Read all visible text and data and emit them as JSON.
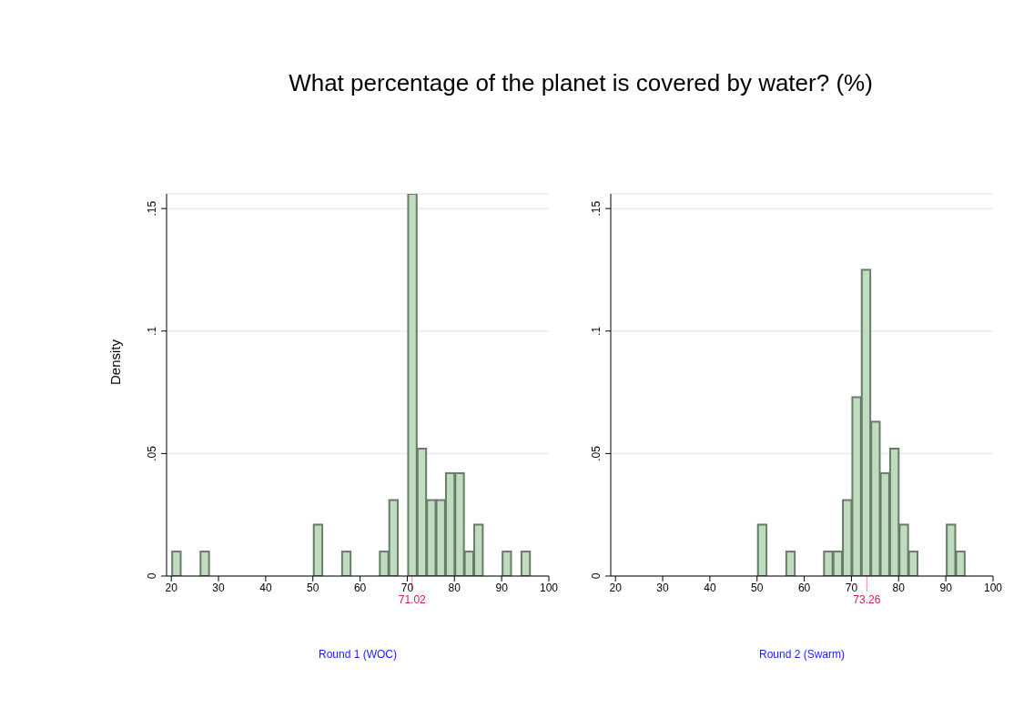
{
  "chart_data": [
    {
      "type": "histogram",
      "title": "What percentage of the planet is covered by water? (%)",
      "xlabel": "Round 1 (WOC)",
      "ylabel": "Density",
      "bins": [
        20,
        22,
        24,
        26,
        28,
        30,
        32,
        34,
        36,
        38,
        40,
        42,
        44,
        46,
        48,
        50,
        52,
        54,
        56,
        58,
        60,
        62,
        64,
        66,
        68,
        70,
        72,
        74,
        76,
        78,
        80,
        82,
        84,
        86,
        88,
        90,
        92,
        94,
        96
      ],
      "values": [
        0.01,
        0,
        0,
        0.01,
        0,
        0,
        0,
        0,
        0,
        0,
        0,
        0,
        0,
        0,
        0,
        0.021,
        0,
        0,
        0.01,
        0,
        0,
        0,
        0.01,
        0.031,
        0,
        0.156,
        0.052,
        0.031,
        0.031,
        0.042,
        0.042,
        0.01,
        0.021,
        0,
        0,
        0.01,
        0,
        0.01
      ],
      "color": "#c0dcc0",
      "xlim": [
        19,
        100
      ],
      "xticks": [
        20,
        30,
        40,
        50,
        60,
        70,
        80,
        90,
        100
      ],
      "ylim": [
        0,
        0.156
      ],
      "yticks": [
        0,
        {
          "value": 0.05,
          "label": ".05"
        },
        {
          "value": 0.1,
          "label": ".1"
        },
        {
          "value": 0.15,
          "label": ".15"
        }
      ],
      "grid": "y",
      "ref_lines": [
        {
          "axis": "x",
          "value": 71.02,
          "label": "71.02",
          "color": "#d0204a"
        }
      ]
    },
    {
      "type": "histogram",
      "xlabel": "Round 2 (Swarm)",
      "bins": [
        50,
        52,
        54,
        56,
        58,
        60,
        62,
        64,
        66,
        68,
        70,
        72,
        74,
        76,
        78,
        80,
        82,
        84,
        86,
        88,
        90,
        92,
        94
      ],
      "values": [
        0.021,
        0,
        0,
        0.01,
        0,
        0,
        0,
        0.01,
        0.01,
        0.031,
        0.073,
        0.125,
        0.063,
        0.042,
        0.052,
        0.021,
        0.01,
        0,
        0,
        0,
        0.021,
        0.01
      ],
      "color": "#c0dcc0",
      "xlim": [
        19,
        100
      ],
      "xticks": [
        20,
        30,
        40,
        50,
        60,
        70,
        80,
        90,
        100
      ],
      "ylim": [
        0,
        0.156
      ],
      "yticks": [
        0,
        {
          "value": 0.05,
          "label": ".05"
        },
        {
          "value": 0.1,
          "label": ".1"
        },
        {
          "value": 0.15,
          "label": ".15"
        }
      ],
      "grid": "y",
      "ref_lines": [
        {
          "axis": "x",
          "value": 73.26,
          "label": "73.26",
          "color": "#d0204a"
        }
      ]
    }
  ]
}
